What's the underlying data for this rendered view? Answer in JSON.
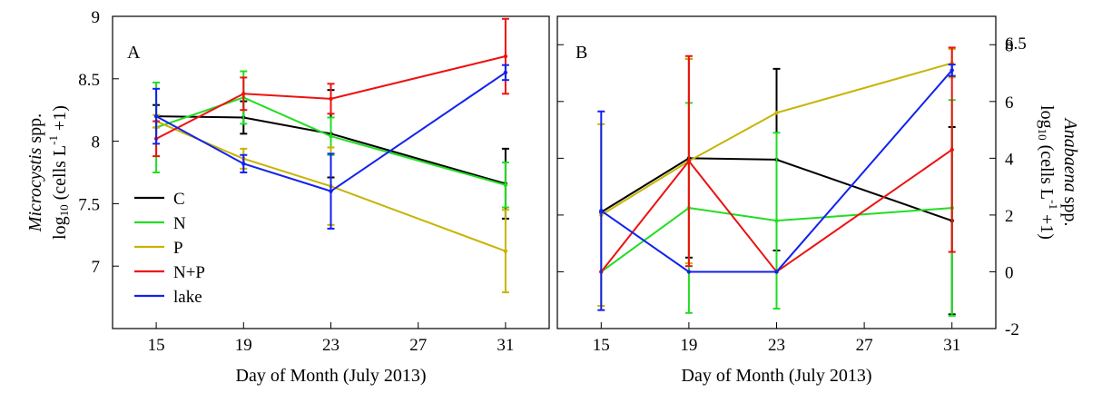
{
  "chart_data": [
    {
      "type": "line",
      "panel_label": "A",
      "xlabel": "Day of Month (July 2013)",
      "ylabel_italic": "Microcystis",
      "ylabel_suffix": " spp.",
      "ylabel_line2": "log<sub>10</sub> (cells L<sup>-1</sup> +1)",
      "xlim": [
        13,
        33
      ],
      "ylim": [
        6.5,
        9
      ],
      "x_ticks": [
        15,
        19,
        23,
        27,
        31
      ],
      "y_ticks": [
        7,
        7.5,
        8,
        8.5,
        9
      ],
      "y_tick_labels": [
        "7",
        "7.5",
        "8",
        "8.5",
        "9"
      ],
      "legend": {
        "position": "lower-left",
        "entries": [
          "C",
          "N",
          "P",
          "N+P",
          "lake"
        ]
      },
      "series": [
        {
          "name": "C",
          "color": "#000000",
          "x": [
            15,
            19,
            23,
            31
          ],
          "y": [
            8.2,
            8.19,
            8.06,
            7.66
          ],
          "err": [
            0.09,
            0.13,
            0.35,
            0.28
          ]
        },
        {
          "name": "N",
          "color": "#22dd22",
          "x": [
            15,
            19,
            23,
            31
          ],
          "y": [
            8.11,
            8.35,
            8.04,
            7.65
          ],
          "err": [
            0.36,
            0.21,
            0.15,
            0.18
          ]
        },
        {
          "name": "P",
          "color": "#c8b400",
          "x": [
            15,
            19,
            23,
            31
          ],
          "y": [
            8.16,
            7.86,
            7.64,
            7.12
          ],
          "err": [
            0.05,
            0.08,
            0.31,
            0.33
          ]
        },
        {
          "name": "N+P",
          "color": "#ee1111",
          "x": [
            15,
            19,
            23,
            31
          ],
          "y": [
            8.02,
            8.38,
            8.34,
            8.68
          ],
          "err": [
            0.14,
            0.13,
            0.12,
            0.3
          ]
        },
        {
          "name": "lake",
          "color": "#1122ee",
          "x": [
            15,
            19,
            23,
            31
          ],
          "y": [
            8.2,
            7.82,
            7.6,
            8.55
          ],
          "err": [
            0.22,
            0.07,
            0.3,
            0.06
          ]
        }
      ]
    },
    {
      "type": "line",
      "panel_label": "B",
      "xlabel": "Day of Month (July 2013)",
      "ylabel_italic": "Anabaena",
      "ylabel_suffix": " spp.",
      "ylabel_line2": "log<sub>10</sub> (cells L<sup>-1</sup> +1)",
      "xlim": [
        13,
        33
      ],
      "ylim": [
        -2,
        9
      ],
      "x_ticks": [
        15,
        19,
        23,
        27,
        31
      ],
      "y_ticks": [
        -2,
        0,
        2,
        4,
        6,
        8
      ],
      "y_tick_labels": [
        "-2",
        "0",
        "2",
        "4",
        "6",
        "8"
      ],
      "top_right_label": "6.5",
      "series": [
        {
          "name": "C",
          "color": "#000000",
          "x": [
            15,
            19,
            23,
            31
          ],
          "y": [
            2.1,
            4.0,
            3.95,
            1.8
          ],
          "err": [
            0.0,
            3.5,
            3.2,
            3.3
          ]
        },
        {
          "name": "N",
          "color": "#22dd22",
          "x": [
            15,
            19,
            23,
            31
          ],
          "y": [
            0.0,
            2.25,
            1.8,
            2.25
          ],
          "err": [
            0.0,
            3.7,
            3.1,
            3.8
          ]
        },
        {
          "name": "P",
          "color": "#c8b400",
          "x": [
            15,
            19,
            23,
            31
          ],
          "y": [
            2.0,
            3.9,
            5.6,
            7.35
          ],
          "err": [
            3.2,
            3.6,
            0.0,
            0.5
          ]
        },
        {
          "name": "N+P",
          "color": "#ee1111",
          "x": [
            15,
            19,
            23,
            31
          ],
          "y": [
            0.0,
            3.9,
            0.0,
            4.3
          ],
          "err": [
            0.0,
            3.7,
            0.0,
            3.6
          ]
        },
        {
          "name": "lake",
          "color": "#1122ee",
          "x": [
            15,
            19,
            23,
            31
          ],
          "y": [
            2.15,
            0.0,
            0.0,
            7.1
          ],
          "err": [
            3.5,
            0.0,
            0.0,
            0.2
          ]
        }
      ]
    }
  ]
}
